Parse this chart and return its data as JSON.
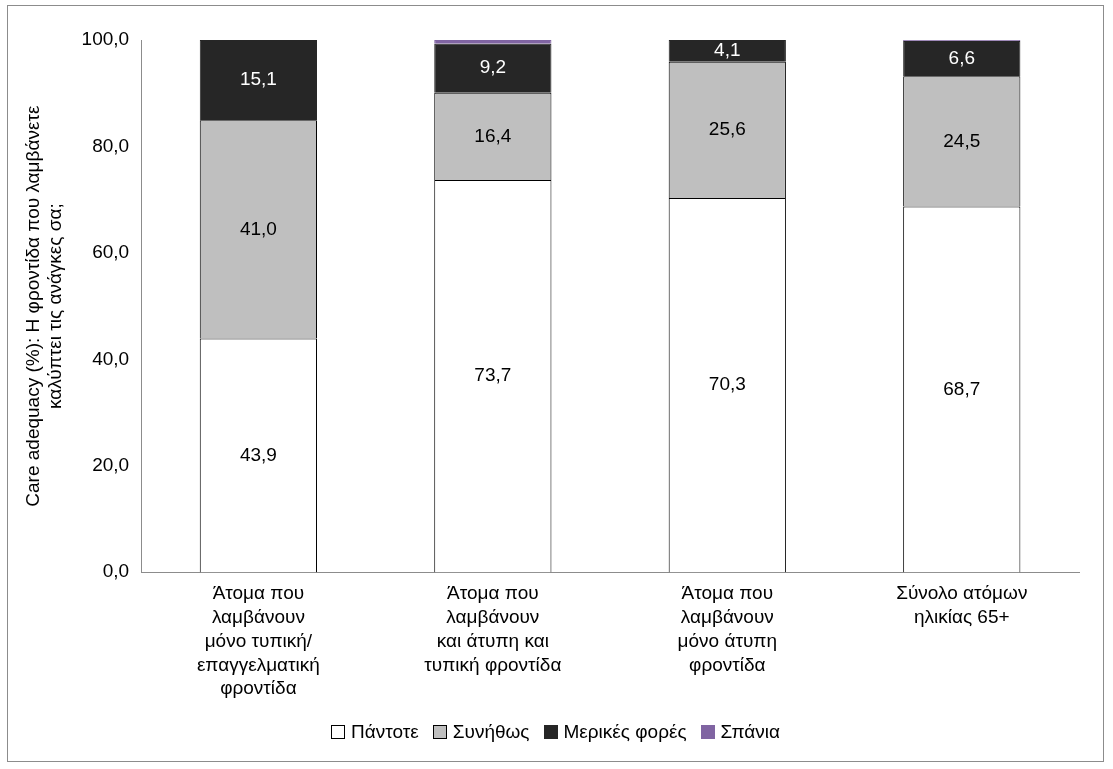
{
  "chart_data": {
    "type": "bar",
    "stacked": true,
    "ylabel": "Care adequacy (%): Η φροντίδα που λαμβάνετε\nκαλύπτει τις ανάγκες σα;",
    "categories": [
      "Άτομα που\nλαμβάνουν\nμόνο τυπική/\nεπαγγελματική\nφροντίδα",
      "Άτομα που\nλαμβάνουν\nκαι άτυπη και\nτυπική φροντίδα",
      "Άτομα που\nλαμβάνουν\nμόνο άτυπη\nφροντίδα",
      "Σύνολο ατόμων\nηλικίας 65+"
    ],
    "series": [
      {
        "name": "Πάντοτε",
        "color": "#ffffff",
        "values": [
          43.9,
          73.7,
          70.3,
          68.7
        ],
        "value_labels": [
          "43,9",
          "73,7",
          "70,3",
          "68,7"
        ]
      },
      {
        "name": "Συνήθως",
        "color": "#bfbfbf",
        "values": [
          41.0,
          16.4,
          25.6,
          24.5
        ],
        "value_labels": [
          "41,0",
          "16,4",
          "25,6",
          "24,5"
        ]
      },
      {
        "name": "Μερικές φορές",
        "color": "#262626",
        "values": [
          15.1,
          9.2,
          4.1,
          6.6
        ],
        "value_labels": [
          "15,1",
          "9,2",
          "4,1",
          "6,6"
        ]
      },
      {
        "name": "Σπάνια",
        "color": "#8064a2",
        "values": [
          0,
          0.7,
          0,
          0.2
        ]
      }
    ],
    "ylim": [
      0,
      100
    ],
    "yticks": [
      {
        "value": 0,
        "label": "0,0"
      },
      {
        "value": 20,
        "label": "20,0"
      },
      {
        "value": 40,
        "label": "40,0"
      },
      {
        "value": 60,
        "label": "60,0"
      },
      {
        "value": 80,
        "label": "80,0"
      },
      {
        "value": 100,
        "label": "100,0"
      }
    ],
    "grid": false,
    "legend": "bottom"
  }
}
